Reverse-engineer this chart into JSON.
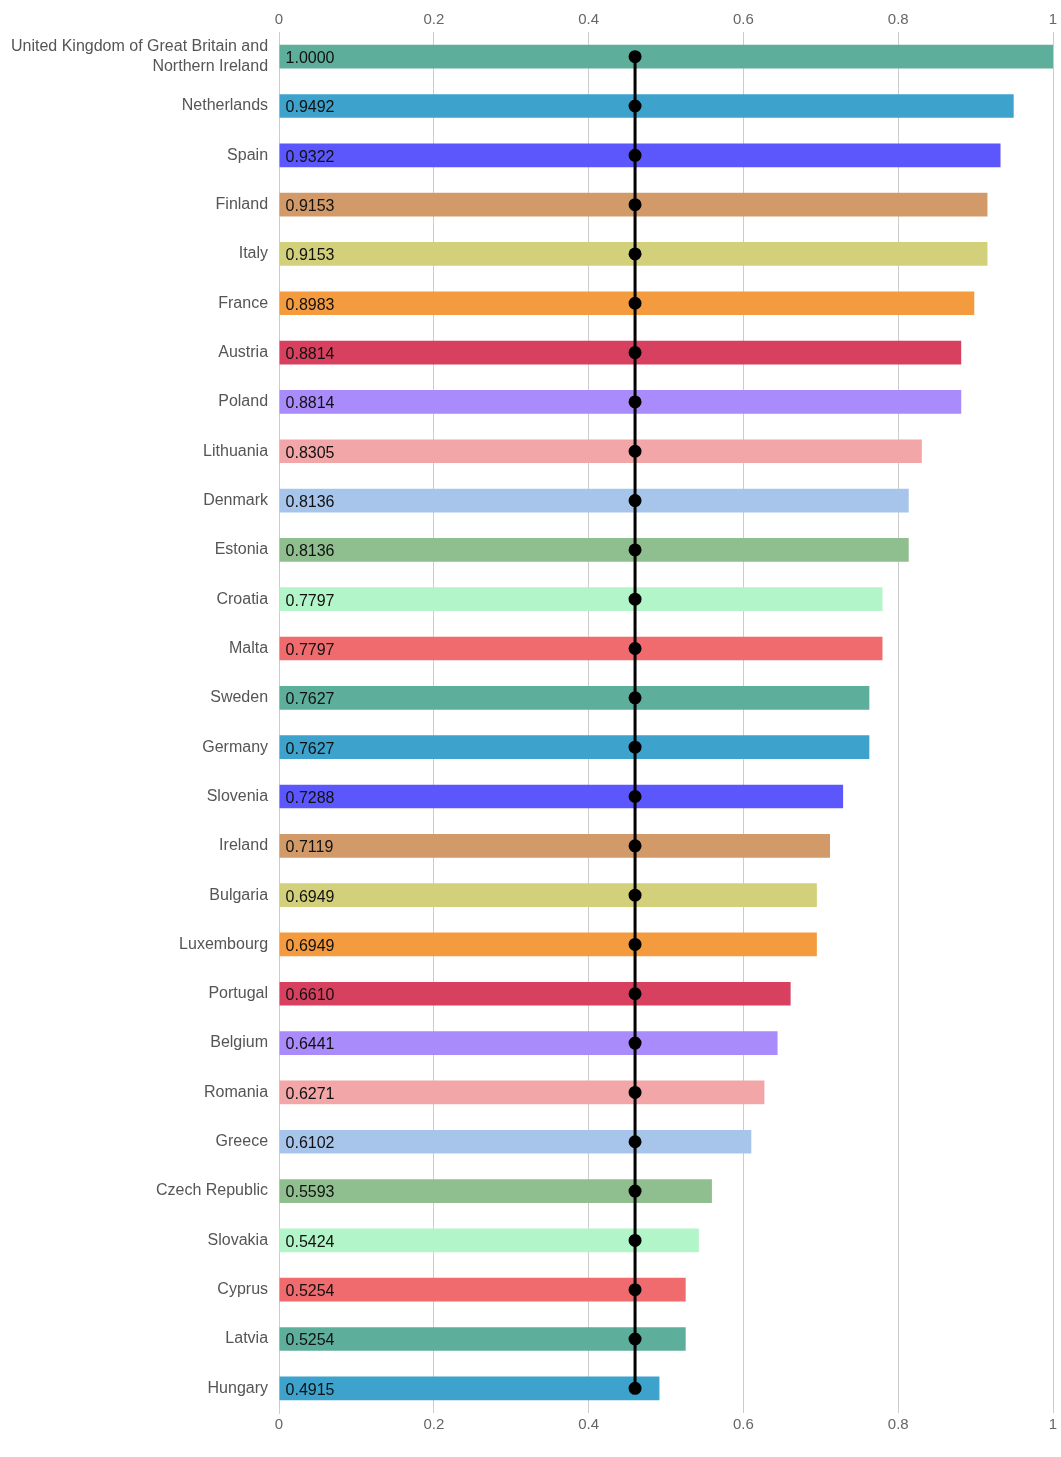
{
  "chart_data": {
    "type": "bar",
    "orientation": "horizontal",
    "categories": [
      "United Kingdom of Great Britain and Northern Ireland",
      "Netherlands",
      "Spain",
      "Finland",
      "Italy",
      "France",
      "Austria",
      "Poland",
      "Lithuania",
      "Denmark",
      "Estonia",
      "Croatia",
      "Malta",
      "Sweden",
      "Germany",
      "Slovenia",
      "Ireland",
      "Bulgaria",
      "Luxembourg",
      "Portugal",
      "Belgium",
      "Romania",
      "Greece",
      "Czech Republic",
      "Slovakia",
      "Cyprus",
      "Latvia",
      "Hungary"
    ],
    "series": [
      {
        "values": [
          1.0,
          0.9492,
          0.9322,
          0.9153,
          0.9153,
          0.8983,
          0.8814,
          0.8814,
          0.8305,
          0.8136,
          0.8136,
          0.7797,
          0.7797,
          0.7627,
          0.7627,
          0.7288,
          0.7119,
          0.6949,
          0.6949,
          0.661,
          0.6441,
          0.6271,
          0.6102,
          0.5593,
          0.5424,
          0.5254,
          0.5254,
          0.4915
        ],
        "value_labels": [
          "1.0000",
          "0.9492",
          "0.9322",
          "0.9153",
          "0.9153",
          "0.8983",
          "0.8814",
          "0.8814",
          "0.8305",
          "0.8136",
          "0.8136",
          "0.7797",
          "0.7797",
          "0.7627",
          "0.7627",
          "0.7288",
          "0.7119",
          "0.6949",
          "0.6949",
          "0.6610",
          "0.6441",
          "0.6271",
          "0.6102",
          "0.5593",
          "0.5424",
          "0.5254",
          "0.5254",
          "0.4915"
        ],
        "colors": [
          "#5eae9c",
          "#3da2cc",
          "#5b57fd",
          "#d29a68",
          "#d3d07b",
          "#f49b3f",
          "#d7415f",
          "#a98bfb",
          "#f2a6a7",
          "#a7c5ea",
          "#8fbf8f",
          "#b1f5c8",
          "#ef6b6e",
          "#5eae9c",
          "#3da2cc",
          "#5b57fd",
          "#d29a68",
          "#d3d07b",
          "#f49b3f",
          "#d7415f",
          "#a98bfb",
          "#f2a6a7",
          "#a7c5ea",
          "#8fbf8f",
          "#b1f5c8",
          "#ef6b6e",
          "#5eae9c",
          "#3da2cc"
        ]
      },
      {
        "type": "line",
        "color": "#000000",
        "marker": "circle",
        "values": [
          0.46,
          0.46,
          0.46,
          0.46,
          0.46,
          0.46,
          0.46,
          0.46,
          0.46,
          0.46,
          0.46,
          0.46,
          0.46,
          0.46,
          0.46,
          0.46,
          0.46,
          0.46,
          0.46,
          0.46,
          0.46,
          0.46,
          0.46,
          0.46,
          0.46,
          0.46,
          0.46,
          0.46
        ]
      }
    ],
    "xlim": [
      0,
      1
    ],
    "xticks": [
      0,
      0.2,
      0.4,
      0.6,
      0.8,
      1
    ],
    "x2lim": [
      0,
      1
    ],
    "x2ticks": [
      0,
      0.2,
      0.4,
      0.6,
      0.8,
      1
    ],
    "grid": "x",
    "legend": false
  }
}
